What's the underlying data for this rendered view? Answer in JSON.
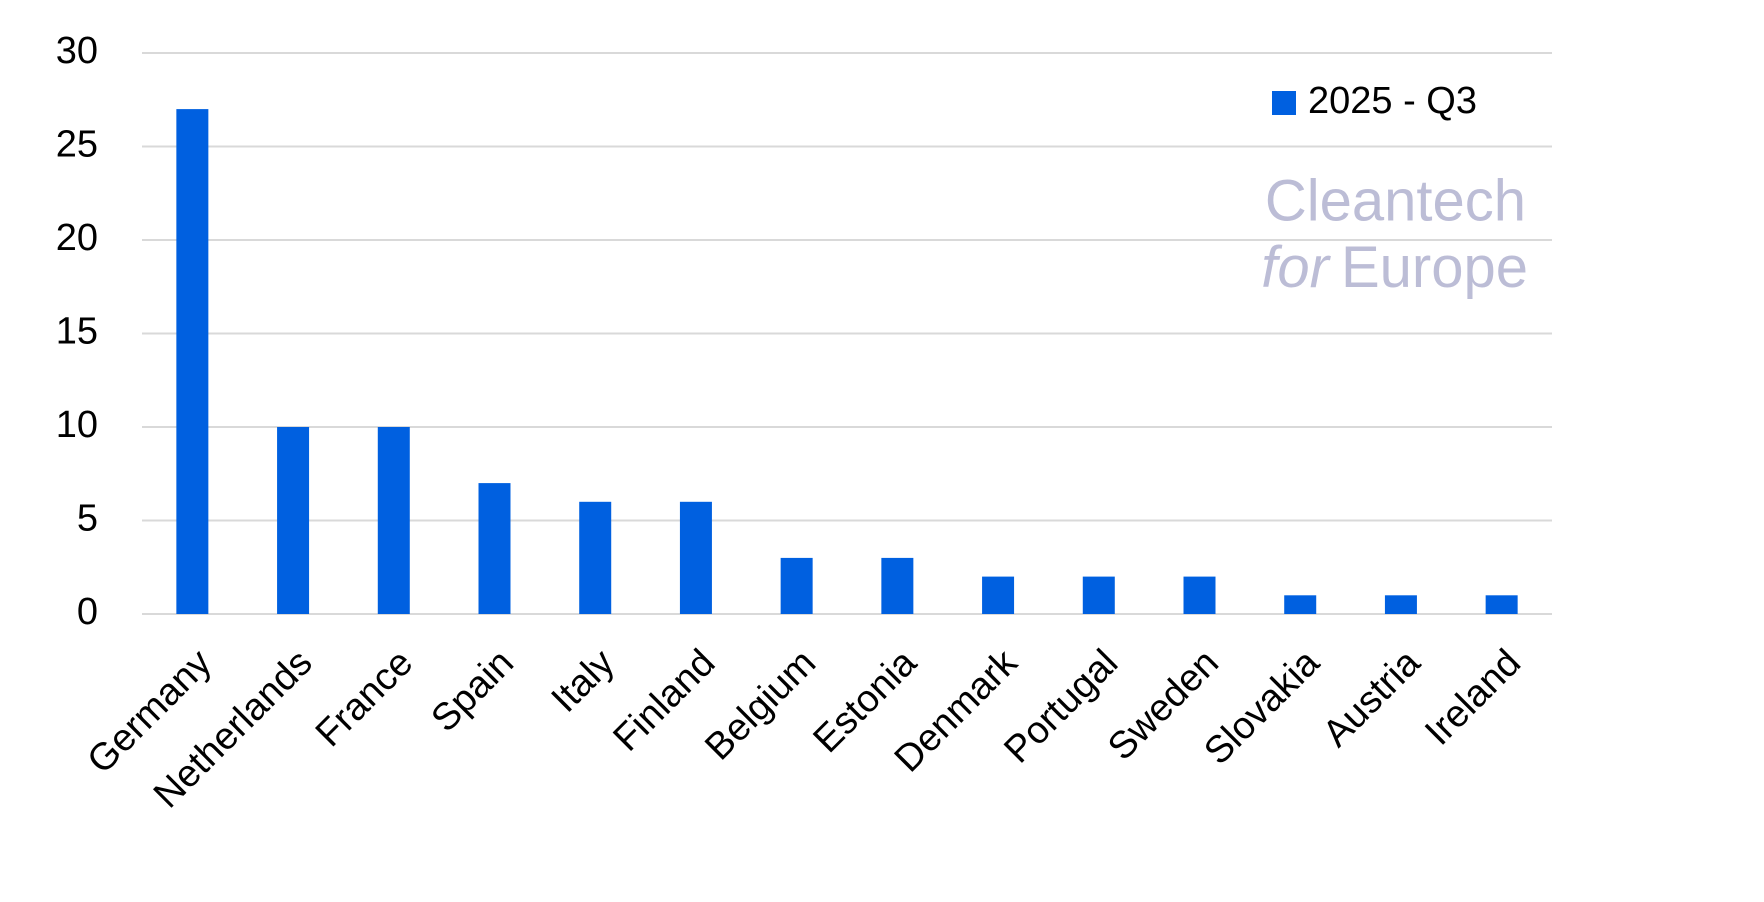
{
  "chart_data": {
    "type": "bar",
    "categories": [
      "Germany",
      "Netherlands",
      "France",
      "Spain",
      "Italy",
      "Finland",
      "Belgium",
      "Estonia",
      "Denmark",
      "Portugal",
      "Sweden",
      "Slovakia",
      "Austria",
      "Ireland"
    ],
    "series": [
      {
        "name": "2025 - Q3",
        "color": "#0060e0",
        "values": [
          27,
          10,
          10,
          7,
          6,
          6,
          3,
          3,
          2,
          2,
          2,
          1,
          1,
          1
        ]
      }
    ],
    "ylim": [
      0,
      30
    ],
    "yticks": [
      0,
      5,
      10,
      15,
      20,
      25,
      30
    ],
    "grid": true,
    "legend": "top-right"
  },
  "watermark": {
    "line1": "Cleantech",
    "line2a": "for",
    "line2b": "Europe"
  }
}
